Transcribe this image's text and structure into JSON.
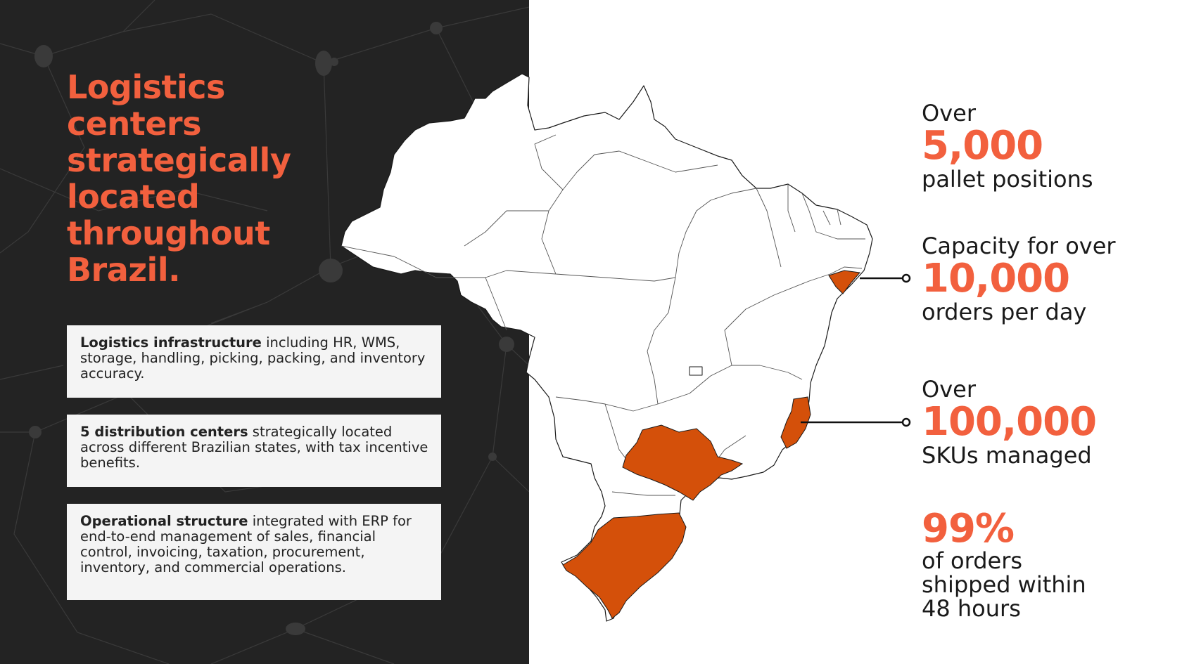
{
  "title": "Logistics centers strategically located throughout Brazil.",
  "cards": [
    {
      "bold": "Logistics infrastructure",
      "rest": " including HR, WMS, storage, handling, picking, packing, and inventory accuracy."
    },
    {
      "bold": "5 distribution centers",
      "rest": " strategically located across different Brazilian states, with tax incentive benefits."
    },
    {
      "bold": "Operational structure",
      "rest": " integrated with ERP for end-to-end management of sales, financial control, invoicing, taxation, procurement, inventory, and commercial operations."
    }
  ],
  "stats": [
    {
      "pre": "Over",
      "value": "5,000",
      "post": "pallet positions"
    },
    {
      "pre": "Capacity for over",
      "value": "10,000",
      "post": "orders per day"
    },
    {
      "pre": "Over",
      "value": "100,000",
      "post": "SKUs managed"
    },
    {
      "value": "99%",
      "post_lines": [
        "of orders",
        "shipped within",
        "48 hours"
      ]
    }
  ],
  "colors": {
    "accent": "#f2603e",
    "highlight": "#d4500a",
    "panel": "#232323",
    "card": "#f4f4f4"
  }
}
